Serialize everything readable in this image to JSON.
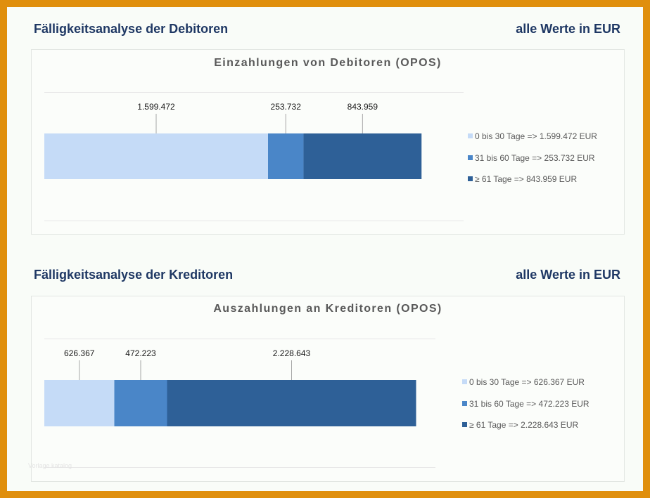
{
  "sections": [
    {
      "heading": "Fälligkeitsanalyse der Debitoren",
      "unit": "alle Werte in EUR",
      "legend": [
        "0 bis 30 Tage => 1.599.472 EUR",
        "31 bis 60 Tage => 253.732 EUR",
        "≥ 61 Tage => 843.959 EUR"
      ]
    },
    {
      "heading": "Fälligkeitsanalyse der Kreditoren",
      "unit": "alle Werte in EUR",
      "legend": [
        "0 bis 30 Tage => 626.367 EUR",
        "31 bis 60 Tage => 472.223 EUR",
        "≥ 61 Tage => 2.228.643 EUR"
      ]
    }
  ],
  "watermark": "Vorlage katalog",
  "chart_data": [
    {
      "type": "bar",
      "orientation": "horizontal-stacked",
      "title": "Einzahlungen von Debitoren (OPOS)",
      "series": [
        {
          "name": "0 bis 30 Tage => 1.599.472 EUR",
          "values": [
            1599472
          ],
          "label": "1.599.472",
          "color": "#c5dbf7"
        },
        {
          "name": "31 bis 60 Tage => 253.732 EUR",
          "values": [
            253732
          ],
          "label": "253.732",
          "color": "#4a86c8"
        },
        {
          "name": "≥ 61 Tage => 843.959 EUR",
          "values": [
            843959
          ],
          "label": "843.959",
          "color": "#2e6097"
        }
      ],
      "legend_position": "right",
      "grid": true
    },
    {
      "type": "bar",
      "orientation": "horizontal-stacked",
      "title": "Auszahlungen an Kreditoren (OPOS)",
      "series": [
        {
          "name": "0 bis 30 Tage => 626.367 EUR",
          "values": [
            626367
          ],
          "label": "626.367",
          "color": "#c5dbf7"
        },
        {
          "name": "31 bis 60 Tage => 472.223 EUR",
          "values": [
            472223
          ],
          "label": "472.223",
          "color": "#4a86c8"
        },
        {
          "name": "≥ 61 Tage => 2.228.643 EUR",
          "values": [
            2228643
          ],
          "label": "2.228.643",
          "color": "#2e6097"
        }
      ],
      "legend_position": "right",
      "grid": true
    }
  ]
}
